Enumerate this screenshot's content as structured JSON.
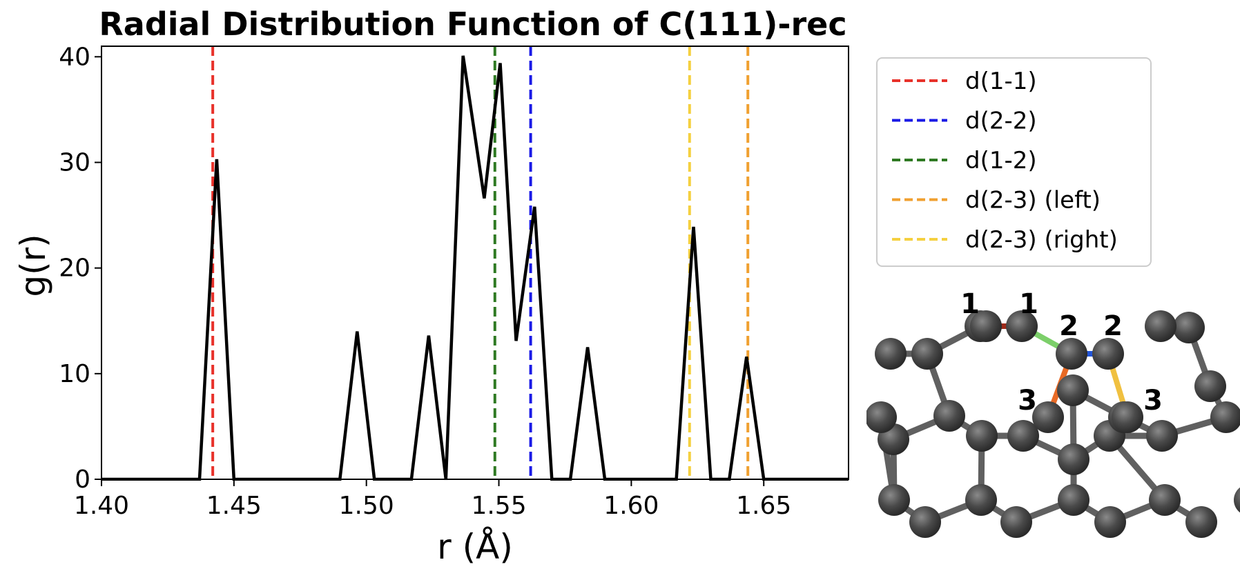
{
  "chart_data": {
    "type": "line",
    "title": "Radial Distribution Function of C(111)-rec",
    "xlabel": "r (Å)",
    "ylabel": "g(r)",
    "xlim": [
      1.4,
      1.682
    ],
    "ylim": [
      0,
      41
    ],
    "xticks": [
      1.4,
      1.45,
      1.5,
      1.55,
      1.6,
      1.65
    ],
    "xtick_labels": [
      "1.40",
      "1.45",
      "1.50",
      "1.55",
      "1.60",
      "1.65"
    ],
    "yticks": [
      0,
      10,
      20,
      30,
      40
    ],
    "ytick_labels": [
      "0",
      "10",
      "20",
      "30",
      "40"
    ],
    "grid": false,
    "series": [
      {
        "color": "#000000",
        "x": [
          1.4,
          1.437,
          1.4435,
          1.45,
          1.49,
          1.4965,
          1.503,
          1.517,
          1.5235,
          1.53,
          1.5365,
          1.5445,
          1.5505,
          1.5565,
          1.5635,
          1.57,
          1.577,
          1.5835,
          1.59,
          1.617,
          1.6235,
          1.63,
          1.637,
          1.6435,
          1.65,
          1.682
        ],
        "y": [
          0,
          0,
          30.3,
          0,
          0,
          14.0,
          0,
          0,
          13.6,
          0,
          40.1,
          26.6,
          39.4,
          13.1,
          25.8,
          0,
          0,
          12.5,
          0,
          0,
          23.9,
          0,
          0,
          11.6,
          0,
          0
        ]
      }
    ],
    "vlines": [
      {
        "name": "d(1-1)",
        "x": 1.442,
        "color": "#e8312a"
      },
      {
        "name": "d(2-2)",
        "x": 1.562,
        "color": "#1a1ae6"
      },
      {
        "name": "d(1-2)",
        "x": 1.5485,
        "color": "#2f7a23"
      },
      {
        "name": "d(2-3) (left)",
        "x": 1.644,
        "color": "#f0a030"
      },
      {
        "name": "d(2-3) (right)",
        "x": 1.622,
        "color": "#f5d040"
      }
    ],
    "legend": {
      "placement": "upper-right-outside",
      "entries": [
        "d(1-1)",
        "d(2-2)",
        "d(1-2)",
        "d(2-3) (left)",
        "d(2-3) (right)"
      ]
    }
  },
  "structure_inset": {
    "atom_labels": [
      "1",
      "1",
      "2",
      "2",
      "3",
      "3"
    ],
    "atom_color": "#4a4a4a",
    "bond_color": "#606060",
    "highlight_bonds": [
      {
        "name": "bond-1-1",
        "color": "#9e2a1a"
      },
      {
        "name": "bond-1-2",
        "color": "#7ccf6a"
      },
      {
        "name": "bond-2-2",
        "color": "#2255d8"
      },
      {
        "name": "bond-2-3-left",
        "color": "#e86a25"
      },
      {
        "name": "bond-2-3-right",
        "color": "#f0c040"
      }
    ]
  }
}
